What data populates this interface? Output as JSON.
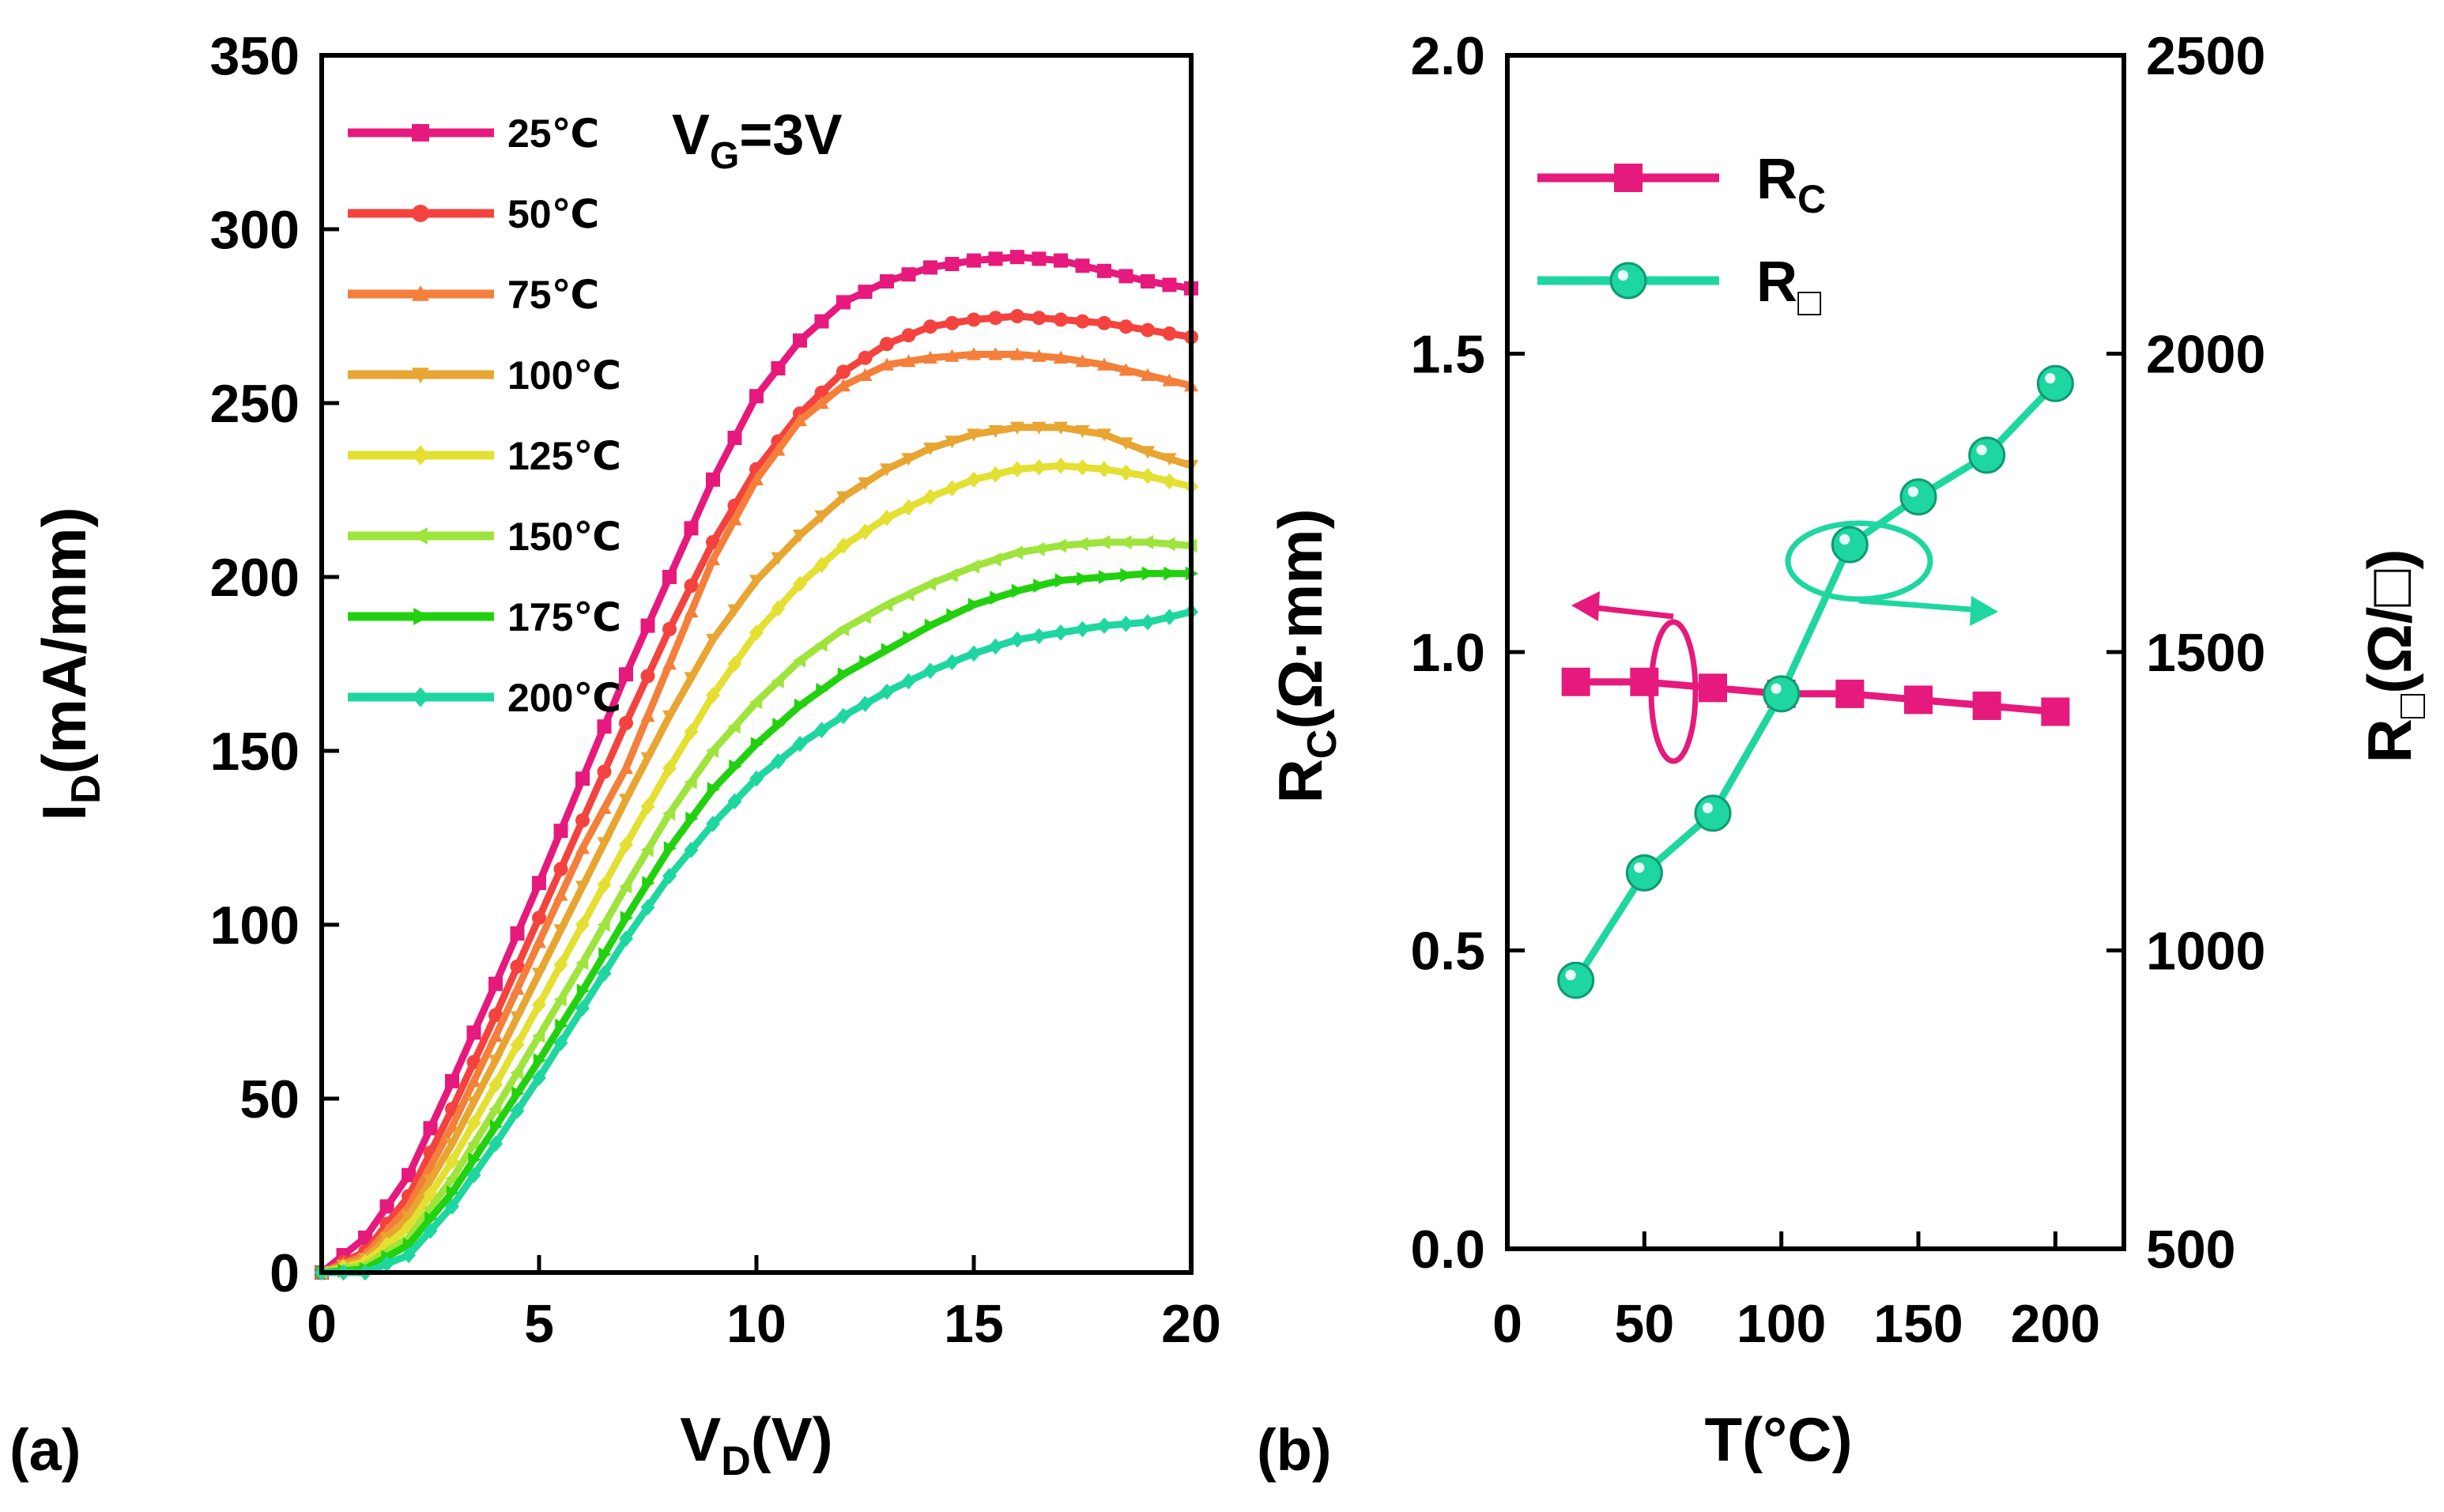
{
  "chart_data": [
    {
      "type": "line",
      "panel_label": "(a)",
      "title": "",
      "xlabel": "V",
      "xlabel_sub": "D",
      "xlabel_suffix": "(V)",
      "ylabel": "I",
      "ylabel_sub": "D",
      "ylabel_suffix": "(mA/mm)",
      "xlim": [
        0,
        20
      ],
      "ylim": [
        0,
        350
      ],
      "xticks": [
        0,
        5,
        10,
        15,
        20
      ],
      "yticks": [
        0,
        50,
        100,
        150,
        200,
        250,
        300,
        350
      ],
      "annotation": {
        "main": "V",
        "sub": "G",
        "rest": "=3V"
      },
      "legend_position": "top-left",
      "series": [
        {
          "name": "25℃",
          "color": "#e6197c",
          "marker": "square",
          "points": [
            [
              0,
              0
            ],
            [
              1,
              10
            ],
            [
              2,
              28
            ],
            [
              3,
              55
            ],
            [
              4,
              83
            ],
            [
              5,
              112
            ],
            [
              6,
              142
            ],
            [
              7,
              172
            ],
            [
              8,
              200
            ],
            [
              9,
              228
            ],
            [
              10,
              252
            ],
            [
              11,
              268
            ],
            [
              12,
              279
            ],
            [
              13,
              285
            ],
            [
              14,
              289
            ],
            [
              15,
              291
            ],
            [
              16,
              292
            ],
            [
              17,
              291
            ],
            [
              18,
              288
            ],
            [
              19,
              285
            ],
            [
              20,
              283
            ]
          ]
        },
        {
          "name": "50℃",
          "color": "#f4433f",
          "marker": "circle",
          "points": [
            [
              0,
              0
            ],
            [
              1,
              6
            ],
            [
              2,
              22
            ],
            [
              3,
              47
            ],
            [
              4,
              74
            ],
            [
              5,
              102
            ],
            [
              6,
              130
            ],
            [
              7,
              158
            ],
            [
              8,
              185
            ],
            [
              9,
              210
            ],
            [
              10,
              231
            ],
            [
              11,
              247
            ],
            [
              12,
              259
            ],
            [
              13,
              267
            ],
            [
              14,
              272
            ],
            [
              15,
              274
            ],
            [
              16,
              275
            ],
            [
              17,
              274
            ],
            [
              18,
              273
            ],
            [
              19,
              271
            ],
            [
              20,
              269
            ]
          ]
        },
        {
          "name": "75℃",
          "color": "#f47f3a",
          "marker": "triangle-up",
          "points": [
            [
              0,
              0
            ],
            [
              1,
              5
            ],
            [
              2,
              19
            ],
            [
              3,
              42
            ],
            [
              4,
              68
            ],
            [
              5,
              95
            ],
            [
              6,
              122
            ],
            [
              7,
              145
            ],
            [
              8,
              175
            ],
            [
              9,
              205
            ],
            [
              10,
              228
            ],
            [
              11,
              245
            ],
            [
              12,
              255
            ],
            [
              13,
              261
            ],
            [
              14,
              263
            ],
            [
              15,
              264
            ],
            [
              16,
              264
            ],
            [
              17,
              263
            ],
            [
              18,
              261
            ],
            [
              19,
              258
            ],
            [
              20,
              255
            ]
          ]
        },
        {
          "name": "100℃",
          "color": "#e8a531",
          "marker": "triangle-down",
          "points": [
            [
              0,
              0
            ],
            [
              1,
              4
            ],
            [
              2,
              16
            ],
            [
              3,
              37
            ],
            [
              4,
              61
            ],
            [
              5,
              86
            ],
            [
              6,
              111
            ],
            [
              7,
              136
            ],
            [
              8,
              160
            ],
            [
              9,
              182
            ],
            [
              10,
              199
            ],
            [
              11,
              212
            ],
            [
              12,
              223
            ],
            [
              13,
              231
            ],
            [
              14,
              237
            ],
            [
              15,
              241
            ],
            [
              16,
              243
            ],
            [
              17,
              243
            ],
            [
              18,
              241
            ],
            [
              19,
              236
            ],
            [
              20,
              232
            ]
          ]
        },
        {
          "name": "125℃",
          "color": "#e3e032",
          "marker": "diamond",
          "points": [
            [
              0,
              0
            ],
            [
              1,
              3
            ],
            [
              2,
              13
            ],
            [
              3,
              32
            ],
            [
              4,
              54
            ],
            [
              5,
              77
            ],
            [
              6,
              100
            ],
            [
              7,
              123
            ],
            [
              8,
              145
            ],
            [
              9,
              166
            ],
            [
              10,
              184
            ],
            [
              11,
              198
            ],
            [
              12,
              209
            ],
            [
              13,
              217
            ],
            [
              14,
              223
            ],
            [
              15,
              228
            ],
            [
              16,
              231
            ],
            [
              17,
              232
            ],
            [
              18,
              231
            ],
            [
              19,
              229
            ],
            [
              20,
              226
            ]
          ]
        },
        {
          "name": "150℃",
          "color": "#9ee43c",
          "marker": "triangle-left",
          "points": [
            [
              0,
              0
            ],
            [
              1,
              2
            ],
            [
              2,
              10
            ],
            [
              3,
              27
            ],
            [
              4,
              47
            ],
            [
              5,
              68
            ],
            [
              6,
              89
            ],
            [
              7,
              111
            ],
            [
              8,
              132
            ],
            [
              9,
              150
            ],
            [
              10,
              164
            ],
            [
              11,
              176
            ],
            [
              12,
              185
            ],
            [
              13,
              192
            ],
            [
              14,
              198
            ],
            [
              15,
              203
            ],
            [
              16,
              207
            ],
            [
              17,
              209
            ],
            [
              18,
              210
            ],
            [
              19,
              210
            ],
            [
              20,
              209
            ]
          ]
        },
        {
          "name": "175℃",
          "color": "#22d10e",
          "marker": "triangle-right",
          "points": [
            [
              0,
              0
            ],
            [
              1,
              1
            ],
            [
              2,
              8
            ],
            [
              3,
              23
            ],
            [
              4,
              42
            ],
            [
              5,
              61
            ],
            [
              6,
              81
            ],
            [
              7,
              102
            ],
            [
              8,
              122
            ],
            [
              9,
              139
            ],
            [
              10,
              152
            ],
            [
              11,
              163
            ],
            [
              12,
              172
            ],
            [
              13,
              179
            ],
            [
              14,
              186
            ],
            [
              15,
              192
            ],
            [
              16,
              196
            ],
            [
              17,
              199
            ],
            [
              18,
              200
            ],
            [
              19,
              201
            ],
            [
              20,
              201
            ]
          ]
        },
        {
          "name": "200℃",
          "color": "#1ed6a0",
          "marker": "diamond",
          "points": [
            [
              0,
              0
            ],
            [
              1,
              0
            ],
            [
              2,
              5
            ],
            [
              3,
              19
            ],
            [
              4,
              37
            ],
            [
              5,
              56
            ],
            [
              6,
              76
            ],
            [
              7,
              96
            ],
            [
              8,
              114
            ],
            [
              9,
              129
            ],
            [
              10,
              142
            ],
            [
              11,
              152
            ],
            [
              12,
              160
            ],
            [
              13,
              167
            ],
            [
              14,
              173
            ],
            [
              15,
              178
            ],
            [
              16,
              182
            ],
            [
              17,
              184
            ],
            [
              18,
              186
            ],
            [
              19,
              187
            ],
            [
              20,
              190
            ]
          ]
        }
      ]
    },
    {
      "type": "line",
      "panel_label": "(b)",
      "xlabel": "T(°C)",
      "ylabel_left": "R",
      "ylabel_left_sub": "C",
      "ylabel_left_suffix": "(Ω·mm)",
      "ylabel_right": "R",
      "ylabel_right_sub": "□",
      "ylabel_right_suffix": "(Ω/□)",
      "xlim": [
        0,
        225
      ],
      "ylim_left": [
        0,
        2
      ],
      "ylim_right": [
        500,
        2500
      ],
      "xticks": [
        0,
        50,
        100,
        150,
        200
      ],
      "yticks_left": [
        "0.0",
        "0.5",
        "1.0",
        "1.5",
        "2.0"
      ],
      "yticks_right": [
        500,
        1000,
        1500,
        2000,
        2500
      ],
      "legend_position": "top-left",
      "series": [
        {
          "name": "R",
          "name_sub": "C",
          "axis": "left",
          "color": "#e6197c",
          "marker": "square",
          "x": [
            25,
            50,
            75,
            100,
            125,
            150,
            175,
            200
          ],
          "values": [
            0.95,
            0.95,
            0.94,
            0.93,
            0.93,
            0.92,
            0.91,
            0.9
          ]
        },
        {
          "name": "R",
          "name_sub": "□",
          "axis": "right",
          "color": "#1ed6a0",
          "marker": "circle",
          "x": [
            25,
            50,
            75,
            100,
            125,
            150,
            175,
            200
          ],
          "values": [
            950,
            1130,
            1230,
            1430,
            1680,
            1760,
            1830,
            1950
          ]
        }
      ]
    }
  ]
}
